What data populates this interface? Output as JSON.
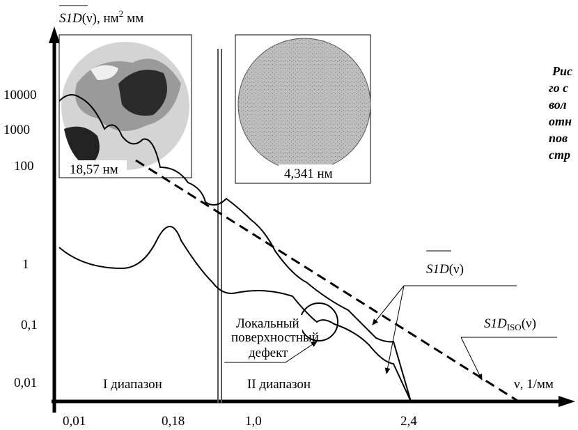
{
  "y_axis": {
    "symbol": "S1D",
    "arg": "(ν), нм",
    "sup": "2",
    "unit": "мм",
    "ticks": [
      "10000",
      "1000",
      "100",
      "1",
      "0,1",
      "0,01"
    ]
  },
  "x_axis": {
    "label": "ν, 1/мм",
    "ticks": [
      "0,01",
      "0,18",
      "1,0",
      "2,4"
    ]
  },
  "ranges": [
    "I диапазон",
    "II диапазон"
  ],
  "images": [
    {
      "caption": "18,57 нм"
    },
    {
      "caption": "4,341 нм"
    }
  ],
  "defect": [
    "Локальный",
    "поверхностный",
    "дефект"
  ],
  "curve_labels": {
    "mean": {
      "symbol": "S1D",
      "arg": "(ν)"
    },
    "iso": {
      "symbol": "S1D",
      "sub": "ISO",
      "arg": "(ν)"
    }
  },
  "caption_fragment": [
    "Рис",
    "го с",
    "вол",
    "отн",
    "пов",
    "стр"
  ]
}
